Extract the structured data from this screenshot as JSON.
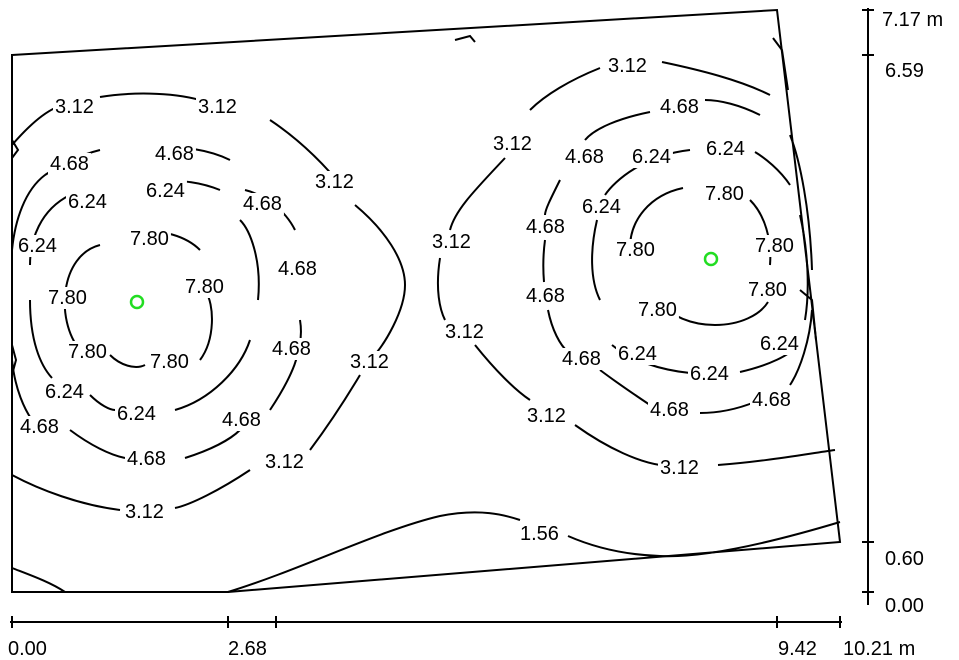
{
  "scale_right": {
    "labels": [
      "7.17 m",
      "6.59",
      "0.60",
      "0.00"
    ]
  },
  "scale_bottom": {
    "labels": [
      "0.00",
      "2.68",
      "9.42",
      "10.21 m"
    ]
  },
  "isolines": {
    "levels": [
      "1.56",
      "3.12",
      "4.68",
      "6.24",
      "7.80"
    ]
  },
  "luminaire_color": "#22dd22"
}
